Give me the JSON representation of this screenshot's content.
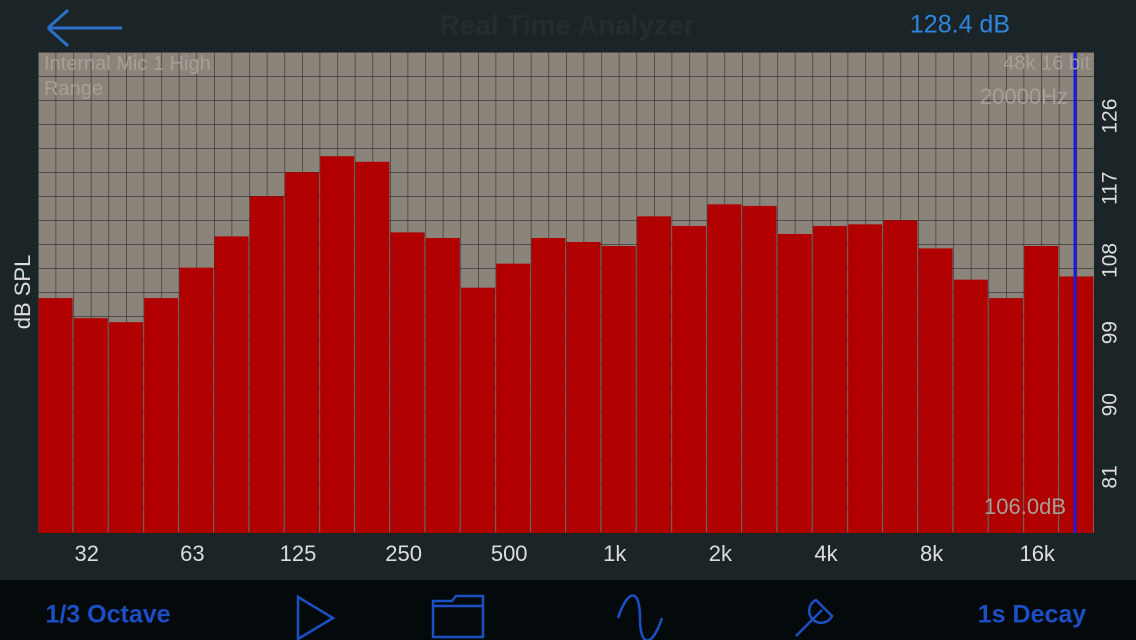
{
  "header": {
    "title": "Real Time Analyzer",
    "level": "128.4 dB"
  },
  "chart_data": {
    "type": "bar",
    "y_label": "dB SPL",
    "source": "Internal Mic 1 High Range",
    "format": "48k 16 bit",
    "cursor_frequency": "20000Hz",
    "categories": [
      null,
      "32",
      null,
      null,
      "63",
      null,
      null,
      "125",
      null,
      null,
      "250",
      null,
      null,
      "500",
      null,
      null,
      "1k",
      null,
      null,
      "2k",
      null,
      null,
      "4k",
      null,
      null,
      "8k",
      null,
      null,
      "16k",
      null
    ],
    "values": [
      103.3,
      100.8,
      100.3,
      103.3,
      107.1,
      111.0,
      116.0,
      119.0,
      121.0,
      120.3,
      111.5,
      110.8,
      104.6,
      107.6,
      110.8,
      110.3,
      109.8,
      113.5,
      112.3,
      115.0,
      114.8,
      111.3,
      112.3,
      112.5,
      113.0,
      109.5,
      105.6,
      103.3,
      109.8,
      106.0
    ],
    "value_labels": [
      null,
      null,
      null,
      null,
      null,
      null,
      null,
      null,
      null,
      null,
      null,
      null,
      null,
      null,
      null,
      null,
      null,
      null,
      null,
      null,
      null,
      null,
      null,
      null,
      null,
      null,
      null,
      null,
      null,
      "106.0dB"
    ],
    "color": "#b00000",
    "ylim": [
      74,
      134
    ],
    "yticks": [
      81,
      90,
      99,
      108,
      117,
      126
    ]
  },
  "toolbar": {
    "resolution": "1/3 Octave",
    "decay": "1s Decay"
  }
}
